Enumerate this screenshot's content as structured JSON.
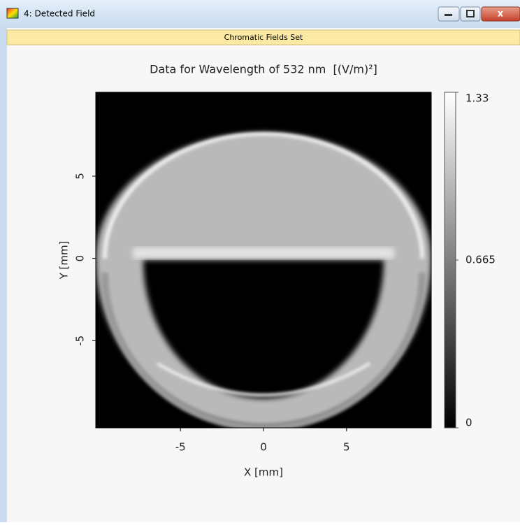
{
  "window": {
    "title": "4: Detected Field",
    "tab": "Chromatic Fields Set"
  },
  "chart_data": {
    "type": "heatmap",
    "title": "Data for Wavelength of 532 nm  [(V/m)²]",
    "x_label": "X [mm]",
    "y_label": "Y [mm]",
    "xlim": [
      -10.1,
      10.1
    ],
    "ylim": [
      -10.3,
      10.1
    ],
    "xticks": [
      -5,
      0,
      5
    ],
    "yticks": [
      -5,
      0,
      5
    ],
    "colorbar": {
      "clim": [
        0,
        1.33
      ],
      "ticks": [
        0,
        0.665,
        1.33
      ],
      "colors": [
        "#000000",
        "#ffffff"
      ]
    }
  }
}
